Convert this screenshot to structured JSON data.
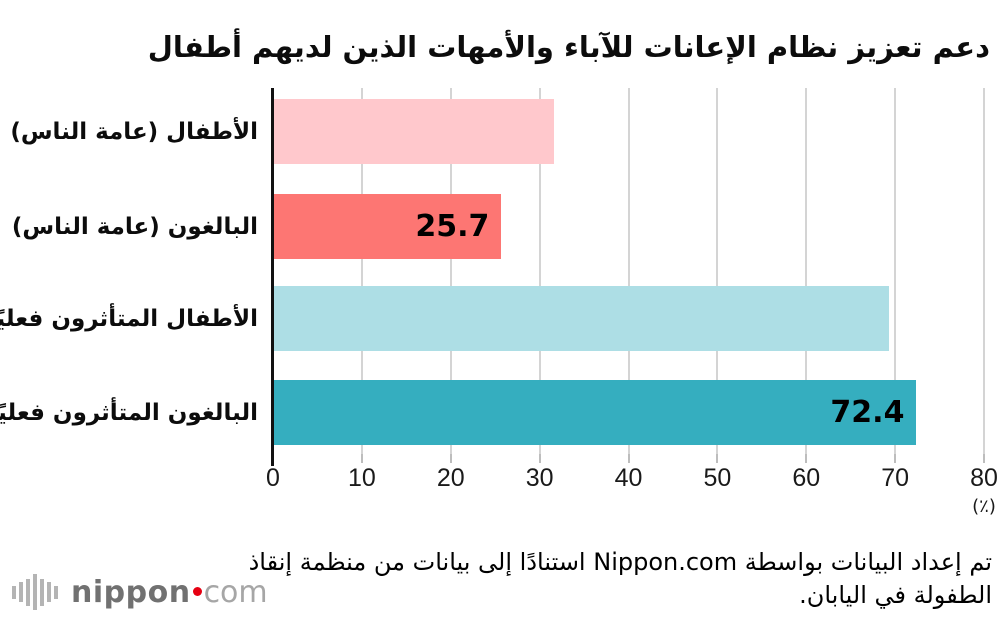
{
  "title": "دعم تعزيز نظام الإعانات للآباء والأمهات الذين لديهم أطفال",
  "chart_data": {
    "type": "bar",
    "orientation": "horizontal",
    "title": "دعم تعزيز نظام الإعانات للآباء والأمهات الذين لديهم أطفال",
    "categories": [
      "الأطفال (عامة الناس)",
      "البالغون (عامة الناس)",
      "الأطفال المتأثرون فعليًا",
      "البالغون المتأثرون فعليًا"
    ],
    "values": [
      31.6,
      25.7,
      69.3,
      72.4
    ],
    "value_labels": [
      "",
      "25.7",
      "",
      "72.4"
    ],
    "bar_colors": [
      "#ffc8cc",
      "#fd7673",
      "#addee5",
      "#35aebf"
    ],
    "x_ticks": [
      0,
      10,
      20,
      30,
      40,
      50,
      60,
      70,
      80
    ],
    "xlim": [
      0,
      80
    ],
    "unit_label": "(٪)",
    "grid": true,
    "legend": "none"
  },
  "footer": {
    "source_line1": "تم إعداد البيانات بواسطة Nippon.com استنادًا إلى بيانات من منظمة إنقاذ",
    "source_line2": "الطفولة في اليابان."
  },
  "logo": {
    "name": "nippon",
    "tld": "com"
  },
  "colors": {
    "axis": "#111111",
    "gridline": "#d4d4d4",
    "tick": "#bdbdbd",
    "logo_name_gray": "#717171",
    "logo_tld_gray": "#a6a6a6",
    "logo_dot_red": "#e60012"
  }
}
